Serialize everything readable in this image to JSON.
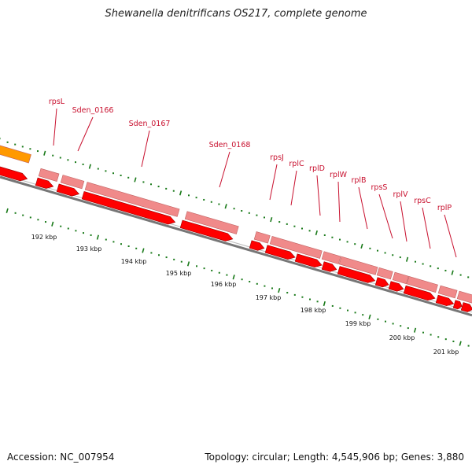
{
  "title": "Shewanella denitrificans OS217, complete genome",
  "footer": {
    "accession": "Accession: NC_007954",
    "summary": "Topology: circular; Length: 4,545,906 bp; Genes: 3,880"
  },
  "colors": {
    "background": "#ffffff",
    "backbone": "#777777",
    "cds_arrow": "#ff0000",
    "gene_bar": "#f08a8a",
    "highlight_feature": "#ff9900",
    "tick": "#1a7a1a",
    "label": "#c8102e"
  },
  "genes": [
    {
      "label": "rpsL"
    },
    {
      "label": "Sden_0166"
    },
    {
      "label": "Sden_0167"
    },
    {
      "label": "Sden_0168"
    },
    {
      "label": "rpsJ"
    },
    {
      "label": "rplC"
    },
    {
      "label": "rplD"
    },
    {
      "label": "rplW"
    },
    {
      "label": "rplB"
    },
    {
      "label": "rpsS"
    },
    {
      "label": "rplV"
    },
    {
      "label": "rpsC"
    },
    {
      "label": "rplP"
    }
  ],
  "scale_labels": [
    "192 kbp",
    "193 kbp",
    "194 kbp",
    "195 kbp",
    "196 kbp",
    "197 kbp",
    "198 kbp",
    "199 kbp",
    "200 kbp",
    "201 kbp"
  ]
}
